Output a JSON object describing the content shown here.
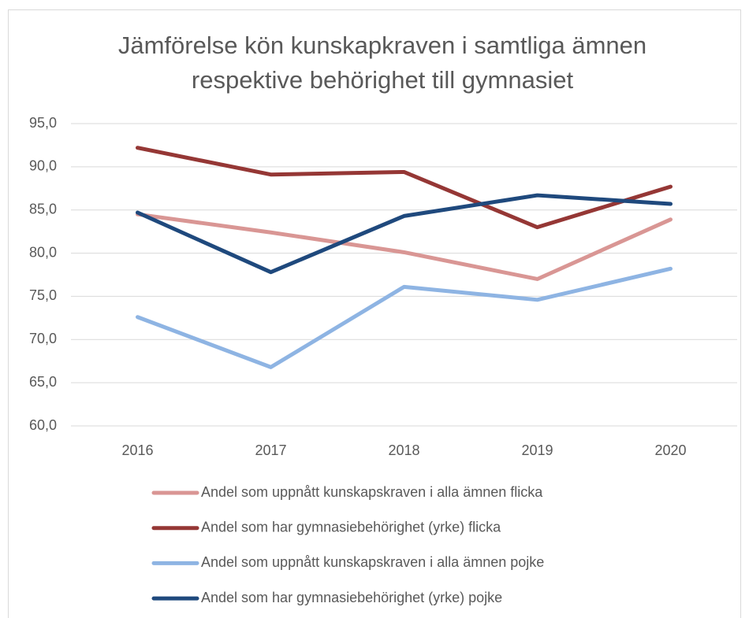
{
  "chart_data": {
    "type": "line",
    "title": [
      "Jämförelse kön kunskapkraven i samtliga ämnen",
      "respektive behörighet till gymnasiet"
    ],
    "categories": [
      "2016",
      "2017",
      "2018",
      "2019",
      "2020"
    ],
    "series": [
      {
        "name": "Andel som uppnått kunskapskraven i alla ämnen flicka",
        "color": "#d99694",
        "values": [
          84.5,
          82.4,
          80.1,
          77.0,
          83.9
        ]
      },
      {
        "name": "Andel som har gymnasiebehörighet (yrke)  flicka",
        "color": "#953735",
        "values": [
          92.2,
          89.1,
          89.4,
          83.0,
          87.7
        ]
      },
      {
        "name": "Andel som uppnått kunskapskraven i alla ämnen pojke",
        "color": "#8eb4e3",
        "values": [
          72.6,
          66.8,
          76.1,
          74.6,
          78.2
        ]
      },
      {
        "name": "Andel som har gymnasiebehörighet (yrke) pojke",
        "color": "#1f497d",
        "values": [
          84.7,
          77.8,
          84.3,
          86.7,
          85.7
        ]
      }
    ],
    "ylim": [
      60,
      95
    ],
    "yticks": [
      {
        "value": 60,
        "label": "60,0"
      },
      {
        "value": 65,
        "label": "65,0"
      },
      {
        "value": 70,
        "label": "70,0"
      },
      {
        "value": 75,
        "label": "75,0"
      },
      {
        "value": 80,
        "label": "80,0"
      },
      {
        "value": 85,
        "label": "85,0"
      },
      {
        "value": 90,
        "label": "90,0"
      },
      {
        "value": 95,
        "label": "95,0"
      }
    ],
    "grid": true,
    "legend": "bottom"
  }
}
